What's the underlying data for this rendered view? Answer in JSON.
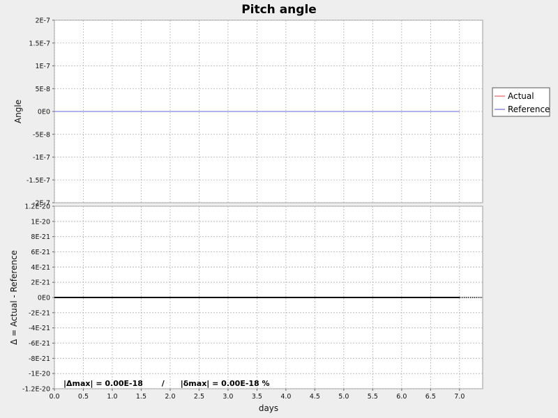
{
  "chart_data": [
    {
      "type": "line",
      "title": "Pitch angle",
      "xlabel": "",
      "ylabel": "Angle",
      "xlim": [
        0,
        7.4
      ],
      "ylim": [
        -2e-07,
        2e-07
      ],
      "x_ticks": [
        0,
        0.5,
        1,
        1.5,
        2,
        2.5,
        3,
        3.5,
        4,
        4.5,
        5,
        5.5,
        6,
        6.5,
        7
      ],
      "y_ticks": [
        2e-07,
        1.5e-07,
        1e-07,
        5e-08,
        0,
        -5e-08,
        -1e-07,
        -1.5e-07,
        -2e-07
      ],
      "y_tick_labels": [
        "2E-7",
        "1.5E-7",
        "1E-7",
        "5E-8",
        "0E0",
        "-5E-8",
        "-1E-7",
        "-1.5E-7",
        "-2E-7"
      ],
      "grid": true,
      "legend": "right",
      "series": [
        {
          "name": "Actual",
          "color": "#e8605a",
          "x": [
            0,
            7
          ],
          "y": [
            0,
            0
          ]
        },
        {
          "name": "Reference",
          "color": "#6a6ad8",
          "x": [
            0,
            7
          ],
          "y": [
            0,
            0
          ]
        }
      ]
    },
    {
      "type": "line",
      "title": "",
      "xlabel": "days",
      "ylabel": "Δ = Actual - Reference",
      "xlim": [
        0,
        7.4
      ],
      "ylim": [
        -1.2e-20,
        1.2e-20
      ],
      "x_ticks": [
        0,
        0.5,
        1,
        1.5,
        2,
        2.5,
        3,
        3.5,
        4,
        4.5,
        5,
        5.5,
        6,
        6.5,
        7
      ],
      "x_tick_labels": [
        "0.0",
        "0.5",
        "1.0",
        "1.5",
        "2.0",
        "2.5",
        "3.0",
        "3.5",
        "4.0",
        "4.5",
        "5.0",
        "5.5",
        "6.0",
        "6.5",
        "7.0"
      ],
      "y_ticks": [
        1.2e-20,
        1e-20,
        8e-21,
        6e-21,
        4e-21,
        2e-21,
        0,
        -2e-21,
        -4e-21,
        -6e-21,
        -8e-21,
        -1e-20,
        -1.2e-20
      ],
      "y_tick_labels": [
        "1.2E-20",
        "1E-20",
        "8E-21",
        "6E-21",
        "4E-21",
        "2E-21",
        "0E0",
        "-2E-21",
        "-4E-21",
        "-6E-21",
        "-8E-21",
        "-1E-20",
        "-1.2E-20"
      ],
      "grid": true,
      "series": [
        {
          "color": "#000000",
          "x": [
            0,
            7
          ],
          "y": [
            0,
            0
          ]
        }
      ],
      "annotation": "|Δmax| = 0.00E-18       /      |δmax| = 0.00E-18 %"
    }
  ],
  "colors": {
    "background": "#eeeeee",
    "plot_background": "#ffffff",
    "grid": "#b0b0b0"
  }
}
